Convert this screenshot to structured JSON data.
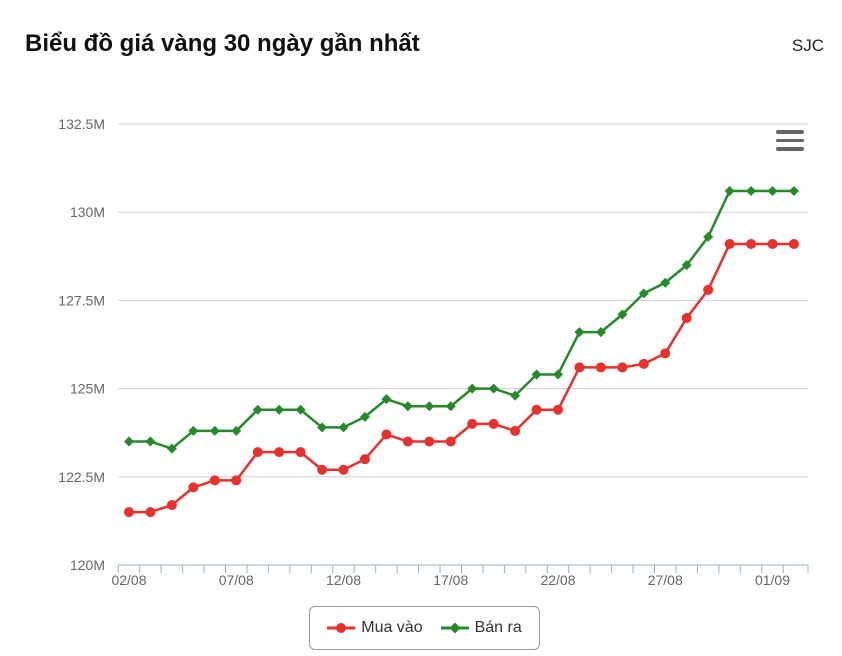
{
  "header": {
    "title": "Biểu đồ giá vàng 30 ngày gần nhất",
    "source": "SJC"
  },
  "menu": {
    "icon": "hamburger-menu-icon"
  },
  "colors": {
    "buy": "#e8312c",
    "sell": "#268a2a",
    "grid": "#d0d0d0",
    "axis": "#9ab0c8"
  },
  "chart_data": {
    "type": "line",
    "x": [
      "02/08",
      "03/08",
      "04/08",
      "05/08",
      "06/08",
      "07/08",
      "08/08",
      "09/08",
      "10/08",
      "11/08",
      "12/08",
      "13/08",
      "14/08",
      "15/08",
      "16/08",
      "17/08",
      "18/08",
      "19/08",
      "20/08",
      "21/08",
      "22/08",
      "23/08",
      "24/08",
      "25/08",
      "26/08",
      "27/08",
      "28/08",
      "29/08",
      "30/08",
      "31/08",
      "01/09",
      "02/09"
    ],
    "x_tick_labels": [
      "02/08",
      "07/08",
      "12/08",
      "17/08",
      "22/08",
      "27/08",
      "01/09"
    ],
    "y_tick_labels": [
      "120M",
      "122.5M",
      "125M",
      "127.5M",
      "130M",
      "132.5M"
    ],
    "ylim": [
      120,
      132.5
    ],
    "y_unit": "M",
    "grid": true,
    "legend_position": "bottom-center",
    "series": [
      {
        "name": "Mua vào",
        "marker": "circle",
        "values": [
          121.5,
          121.5,
          121.7,
          122.2,
          122.4,
          122.4,
          123.2,
          123.2,
          123.2,
          122.7,
          122.7,
          123.0,
          123.7,
          123.5,
          123.5,
          123.5,
          124.0,
          124.0,
          123.8,
          124.4,
          124.4,
          125.6,
          125.6,
          125.6,
          125.7,
          126.0,
          127.0,
          127.8,
          129.1,
          129.1,
          129.1,
          129.1
        ]
      },
      {
        "name": "Bán ra",
        "marker": "diamond",
        "values": [
          123.5,
          123.5,
          123.3,
          123.8,
          123.8,
          123.8,
          124.4,
          124.4,
          124.4,
          123.9,
          123.9,
          124.2,
          124.7,
          124.5,
          124.5,
          124.5,
          125.0,
          125.0,
          124.8,
          125.4,
          125.4,
          126.6,
          126.6,
          127.1,
          127.7,
          128.0,
          128.5,
          129.3,
          130.6,
          130.6,
          130.6,
          130.6
        ]
      }
    ]
  }
}
